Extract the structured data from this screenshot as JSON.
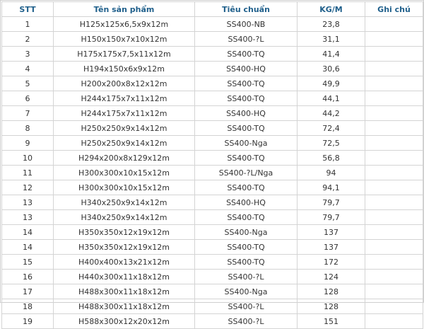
{
  "headers": [
    "STT",
    "Tên sản phẩm",
    "Tiêu chuẩn",
    "KG/M",
    "Ghi chú"
  ],
  "rows": [
    [
      "1",
      "H125x125x6,5x9x12m",
      "SS400-NB",
      "23,8",
      ""
    ],
    [
      "2",
      "H150x150x7x10x12m",
      "SS400-?L",
      "31,1",
      ""
    ],
    [
      "3",
      "H175x175x7,5x11x12m",
      "SS400-TQ",
      "41,4",
      ""
    ],
    [
      "4",
      "H194x150x6x9x12m",
      "SS400-HQ",
      "30,6",
      ""
    ],
    [
      "5",
      "H200x200x8x12x12m",
      "SS400-TQ",
      "49,9",
      ""
    ],
    [
      "6",
      "H244x175x7x11x12m",
      "SS400-TQ",
      "44,1",
      ""
    ],
    [
      "7",
      "H244x175x7x11x12m",
      "SS400-HQ",
      "44,2",
      ""
    ],
    [
      "8",
      "H250x250x9x14x12m",
      "SS400-TQ",
      "72,4",
      ""
    ],
    [
      "9",
      "H250x250x9x14x12m",
      "SS400-Nga",
      "72,5",
      ""
    ],
    [
      "10",
      "H294x200x8x129x12m",
      "SS400-TQ",
      "56,8",
      ""
    ],
    [
      "11",
      "H300x300x10x15x12m",
      "SS400-?L/Nga",
      "94",
      ""
    ],
    [
      "12",
      "H300x300x10x15x12m",
      "SS400-TQ",
      "94,1",
      ""
    ],
    [
      "13",
      "H340x250x9x14x12m",
      "SS400-HQ",
      "79,7",
      ""
    ],
    [
      "13",
      "H340x250x9x14x12m",
      "SS400-TQ",
      "79,7",
      ""
    ],
    [
      "14",
      "H350x350x12x19x12m",
      "SS400-Nga",
      "137",
      ""
    ],
    [
      "14",
      "H350x350x12x19x12m",
      "SS400-TQ",
      "137",
      ""
    ],
    [
      "15",
      "H400x400x13x21x12m",
      "SS400-TQ",
      "172",
      ""
    ],
    [
      "16",
      "H440x300x11x18x12m",
      "SS400-?L",
      "124",
      ""
    ],
    [
      "17",
      "H488x300x11x18x12m",
      "SS400-Nga",
      "128",
      ""
    ],
    [
      "18",
      "H488x300x11x18x12m",
      "SS400-?L",
      "128",
      ""
    ],
    [
      "19",
      "H588x300x12x20x12m",
      "SS400-?L",
      "151",
      ""
    ]
  ],
  "colors": {
    "header_text": "#1f5f8b",
    "body_text": "#333333",
    "border": "#d4d4d4"
  }
}
